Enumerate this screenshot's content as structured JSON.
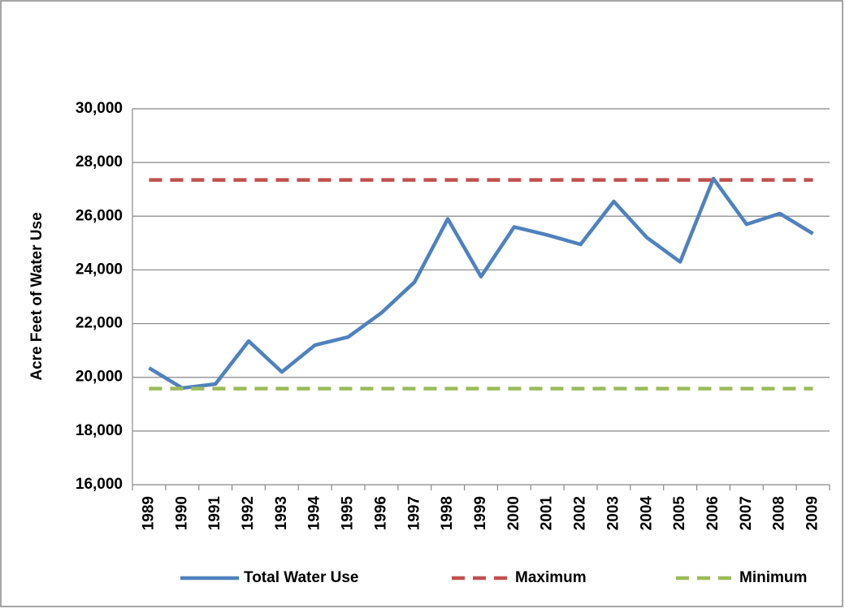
{
  "chart_data": {
    "type": "line",
    "y_label": "Acre Feet of Water Use",
    "categories": [
      "1989",
      "1990",
      "1991",
      "1992",
      "1993",
      "1994",
      "1995",
      "1996",
      "1997",
      "1998",
      "1999",
      "2000",
      "2001",
      "2002",
      "2003",
      "2004",
      "2005",
      "2006",
      "2007",
      "2008",
      "2009"
    ],
    "series": [
      {
        "name": "Total Water Use",
        "color": "#4f81bd",
        "line_style": "solid",
        "values": [
          20350,
          19600,
          19750,
          21350,
          20200,
          21200,
          21500,
          22400,
          23550,
          25900,
          23750,
          25600,
          25300,
          24950,
          26550,
          25200,
          24300,
          27400,
          25700,
          26100,
          25350
        ]
      },
      {
        "name": "Maximum",
        "color": "#c0504d",
        "line_style": "dashed",
        "values": [
          27350,
          27350,
          27350,
          27350,
          27350,
          27350,
          27350,
          27350,
          27350,
          27350,
          27350,
          27350,
          27350,
          27350,
          27350,
          27350,
          27350,
          27350,
          27350,
          27350,
          27350
        ]
      },
      {
        "name": "Minimum",
        "color": "#9bbb59",
        "line_style": "dashed",
        "values": [
          19580,
          19580,
          19580,
          19580,
          19580,
          19580,
          19580,
          19580,
          19580,
          19580,
          19580,
          19580,
          19580,
          19580,
          19580,
          19580,
          19580,
          19580,
          19580,
          19580,
          19580
        ]
      }
    ],
    "ylim": [
      16000,
      30000
    ],
    "yticks": [
      {
        "value": 16000,
        "label": "16,000"
      },
      {
        "value": 18000,
        "label": "18,000"
      },
      {
        "value": 20000,
        "label": "20,000"
      },
      {
        "value": 22000,
        "label": "22,000"
      },
      {
        "value": 24000,
        "label": "24,000"
      },
      {
        "value": 26000,
        "label": "26,000"
      },
      {
        "value": 28000,
        "label": "28,000"
      },
      {
        "value": 30000,
        "label": "30,000"
      }
    ],
    "grid": true,
    "legend": "bottom"
  }
}
